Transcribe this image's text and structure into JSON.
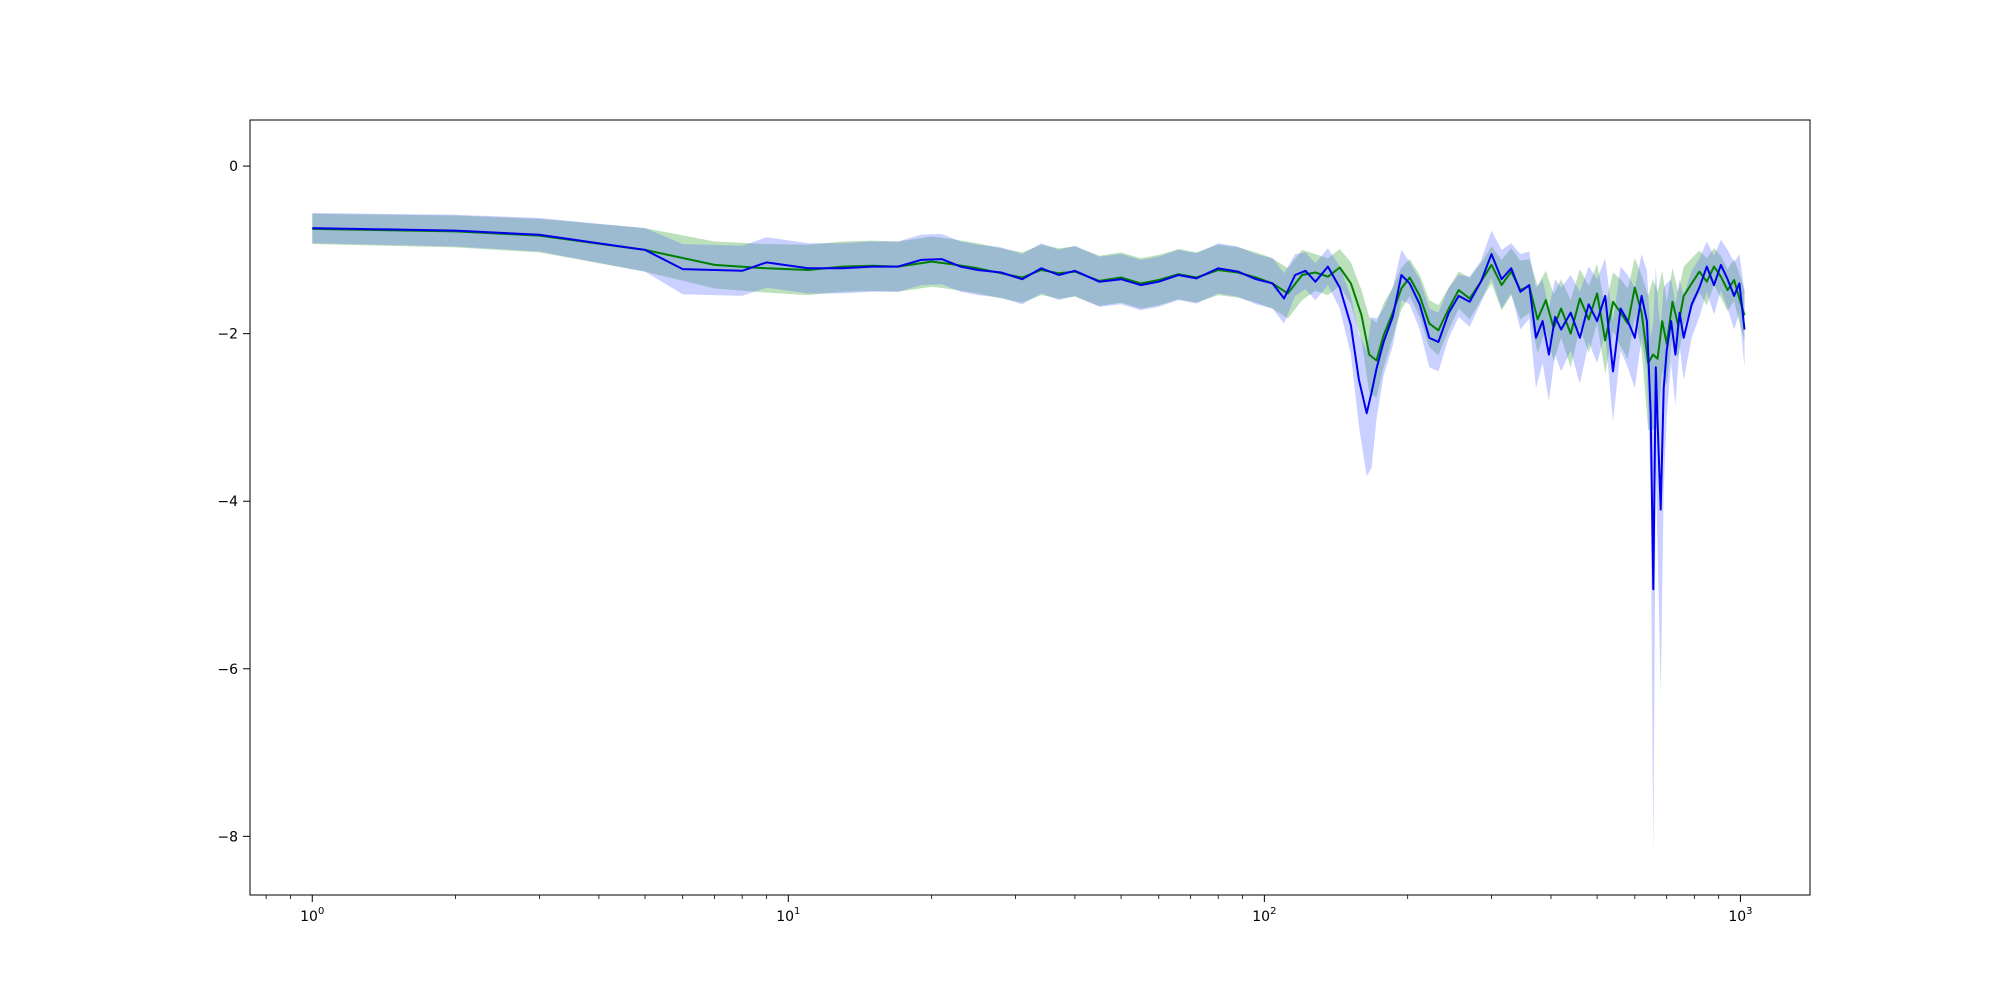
{
  "chart_data": {
    "type": "line",
    "title": "",
    "xlabel": "",
    "ylabel": "",
    "xscale": "log",
    "xlim": [
      0.74,
      1400
    ],
    "ylim": [
      -8.7,
      0.55
    ],
    "grid": false,
    "legend": "none",
    "x_ticks": [
      {
        "value": 1,
        "base": "10",
        "exp": "0"
      },
      {
        "value": 10,
        "base": "10",
        "exp": "1"
      },
      {
        "value": 100,
        "base": "10",
        "exp": "2"
      },
      {
        "value": 1000,
        "base": "10",
        "exp": "3"
      }
    ],
    "y_ticks": [
      {
        "value": 0,
        "label": "0"
      },
      {
        "value": -2,
        "label": "−2"
      },
      {
        "value": -4,
        "label": "−4"
      },
      {
        "value": -6,
        "label": "−6"
      },
      {
        "value": -8,
        "label": "−8"
      }
    ],
    "series": [
      {
        "color": "#008000",
        "band_color": "#2ca02c",
        "x": [
          1,
          2,
          3,
          5,
          7,
          9,
          11,
          13,
          15,
          17,
          20,
          22,
          25,
          28,
          31,
          34,
          37,
          40,
          45,
          50,
          55,
          60,
          66,
          72,
          80,
          88,
          96,
          104,
          112,
          120,
          128,
          136,
          144,
          152,
          160,
          166,
          172,
          178,
          186,
          194,
          202,
          212,
          222,
          232,
          244,
          256,
          270,
          285,
          300,
          315,
          330,
          345,
          360,
          375,
          390,
          405,
          420,
          440,
          460,
          480,
          500,
          520,
          540,
          560,
          580,
          600,
          620,
          640,
          655,
          670,
          685,
          700,
          720,
          740,
          760,
          790,
          820,
          850,
          880,
          910,
          940,
          970,
          1000,
          1020
        ],
        "y": [
          -0.75,
          -0.78,
          -0.83,
          -1.0,
          -1.18,
          -1.22,
          -1.24,
          -1.2,
          -1.19,
          -1.2,
          -1.14,
          -1.17,
          -1.22,
          -1.28,
          -1.33,
          -1.24,
          -1.28,
          -1.26,
          -1.37,
          -1.33,
          -1.4,
          -1.36,
          -1.29,
          -1.33,
          -1.24,
          -1.27,
          -1.33,
          -1.4,
          -1.52,
          -1.3,
          -1.27,
          -1.32,
          -1.21,
          -1.4,
          -1.78,
          -2.25,
          -2.32,
          -2.02,
          -1.75,
          -1.46,
          -1.33,
          -1.55,
          -1.88,
          -1.96,
          -1.7,
          -1.48,
          -1.58,
          -1.38,
          -1.18,
          -1.42,
          -1.26,
          -1.48,
          -1.43,
          -1.83,
          -1.6,
          -1.93,
          -1.7,
          -2.0,
          -1.58,
          -1.83,
          -1.52,
          -2.08,
          -1.62,
          -1.75,
          -1.88,
          -1.45,
          -1.75,
          -2.35,
          -2.25,
          -2.3,
          -1.85,
          -2.12,
          -1.62,
          -1.9,
          -1.55,
          -1.4,
          -1.26,
          -1.38,
          -1.2,
          -1.32,
          -1.48,
          -1.36,
          -1.62,
          -1.78
        ],
        "sd": [
          0.18,
          0.19,
          0.2,
          0.26,
          0.28,
          0.29,
          0.3,
          0.3,
          0.3,
          0.3,
          0.3,
          0.3,
          0.3,
          0.3,
          0.3,
          0.3,
          0.3,
          0.3,
          0.3,
          0.3,
          0.3,
          0.3,
          0.3,
          0.3,
          0.3,
          0.3,
          0.3,
          0.3,
          0.3,
          0.3,
          0.22,
          0.22,
          0.22,
          0.25,
          0.3,
          0.45,
          0.45,
          0.38,
          0.3,
          0.25,
          0.22,
          0.25,
          0.28,
          0.3,
          0.25,
          0.22,
          0.25,
          0.22,
          0.22,
          0.3,
          0.28,
          0.35,
          0.32,
          0.4,
          0.35,
          0.4,
          0.35,
          0.4,
          0.35,
          0.4,
          0.35,
          0.4,
          0.35,
          0.4,
          0.42,
          0.35,
          0.45,
          0.8,
          0.9,
          0.8,
          0.6,
          0.5,
          0.4,
          0.4,
          0.35,
          0.3,
          0.25,
          0.28,
          0.22,
          0.25,
          0.25,
          0.25,
          0.3,
          0.3
        ]
      },
      {
        "color": "#0000ee",
        "band_color": "#5a6cff",
        "x": [
          1,
          2,
          3,
          5,
          6,
          8,
          9,
          11,
          13,
          15,
          17,
          19,
          21,
          23,
          25,
          28,
          31,
          34,
          37,
          40,
          45,
          50,
          55,
          60,
          66,
          72,
          80,
          88,
          96,
          104,
          110,
          116,
          122,
          128,
          136,
          144,
          152,
          158,
          164,
          168,
          172,
          178,
          186,
          194,
          202,
          212,
          222,
          232,
          244,
          256,
          270,
          285,
          300,
          315,
          330,
          345,
          360,
          372,
          384,
          396,
          408,
          420,
          440,
          460,
          480,
          500,
          520,
          540,
          560,
          580,
          600,
          620,
          636,
          648,
          656,
          664,
          672,
          680,
          690,
          700,
          715,
          730,
          745,
          760,
          790,
          820,
          850,
          880,
          910,
          940,
          970,
          995,
          1020
        ],
        "y": [
          -0.74,
          -0.77,
          -0.82,
          -1.0,
          -1.23,
          -1.25,
          -1.15,
          -1.22,
          -1.22,
          -1.2,
          -1.2,
          -1.12,
          -1.11,
          -1.2,
          -1.24,
          -1.27,
          -1.35,
          -1.22,
          -1.3,
          -1.25,
          -1.38,
          -1.35,
          -1.42,
          -1.38,
          -1.3,
          -1.34,
          -1.22,
          -1.26,
          -1.35,
          -1.4,
          -1.58,
          -1.3,
          -1.25,
          -1.38,
          -1.2,
          -1.45,
          -1.9,
          -2.55,
          -2.95,
          -2.7,
          -2.42,
          -2.1,
          -1.8,
          -1.3,
          -1.4,
          -1.65,
          -2.05,
          -2.1,
          -1.75,
          -1.55,
          -1.62,
          -1.38,
          -1.05,
          -1.35,
          -1.22,
          -1.5,
          -1.42,
          -2.05,
          -1.85,
          -2.25,
          -1.8,
          -1.95,
          -1.75,
          -2.05,
          -1.65,
          -1.85,
          -1.55,
          -2.45,
          -1.7,
          -1.85,
          -2.05,
          -1.55,
          -1.85,
          -2.95,
          -5.05,
          -2.4,
          -3.3,
          -4.1,
          -2.65,
          -2.2,
          -1.85,
          -2.25,
          -1.75,
          -2.05,
          -1.65,
          -1.45,
          -1.2,
          -1.42,
          -1.18,
          -1.35,
          -1.55,
          -1.4,
          -1.95
        ],
        "sd": [
          0.18,
          0.19,
          0.2,
          0.26,
          0.3,
          0.3,
          0.3,
          0.3,
          0.3,
          0.3,
          0.3,
          0.3,
          0.3,
          0.3,
          0.3,
          0.3,
          0.3,
          0.3,
          0.3,
          0.3,
          0.3,
          0.3,
          0.3,
          0.3,
          0.3,
          0.3,
          0.3,
          0.3,
          0.3,
          0.3,
          0.3,
          0.25,
          0.22,
          0.22,
          0.22,
          0.25,
          0.35,
          0.55,
          0.75,
          0.9,
          0.6,
          0.4,
          0.35,
          0.3,
          0.25,
          0.3,
          0.35,
          0.35,
          0.3,
          0.25,
          0.3,
          0.25,
          0.28,
          0.35,
          0.3,
          0.45,
          0.4,
          0.6,
          0.5,
          0.55,
          0.45,
          0.5,
          0.45,
          0.55,
          0.45,
          0.5,
          0.45,
          0.6,
          0.5,
          0.55,
          0.6,
          0.5,
          0.6,
          0.9,
          3.2,
          1.2,
          1.6,
          2.2,
          1.2,
          0.8,
          0.5,
          0.6,
          0.4,
          0.5,
          0.4,
          0.35,
          0.3,
          0.35,
          0.3,
          0.35,
          0.4,
          0.35,
          0.45
        ]
      }
    ]
  }
}
